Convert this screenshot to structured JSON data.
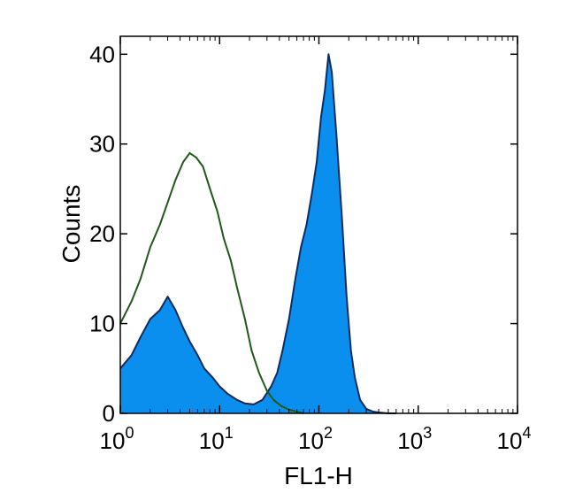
{
  "chart_data": {
    "type": "area",
    "title": "",
    "xlabel": "FL1-H",
    "ylabel": "Counts",
    "x_scale": "log",
    "xlim": [
      1,
      10000
    ],
    "ylim": [
      0,
      42
    ],
    "grid": false,
    "legend": "none",
    "x_ticks": [
      {
        "value": 1,
        "base": "10",
        "exp": "0"
      },
      {
        "value": 10,
        "base": "10",
        "exp": "1"
      },
      {
        "value": 100,
        "base": "10",
        "exp": "2"
      },
      {
        "value": 1000,
        "base": "10",
        "exp": "3"
      },
      {
        "value": 10000,
        "base": "10",
        "exp": "4"
      }
    ],
    "y_ticks": [
      {
        "value": 0,
        "label": "0"
      },
      {
        "value": 10,
        "label": "10"
      },
      {
        "value": 20,
        "label": "20"
      },
      {
        "value": 30,
        "label": "30"
      },
      {
        "value": 40,
        "label": "40"
      }
    ],
    "series": [
      {
        "style": "filled",
        "color": "#0a8fef",
        "edge_color": "#0b2d63",
        "x": [
          1.0,
          1.3,
          1.6,
          2.0,
          2.5,
          3.0,
          3.6,
          4.3,
          5.0,
          6.0,
          7.0,
          8.5,
          10,
          12,
          15,
          18,
          22,
          27,
          33,
          38,
          43,
          50,
          58,
          66,
          75,
          85,
          95,
          105,
          115,
          125,
          135,
          150,
          170,
          190,
          210,
          230,
          260,
          300,
          350,
          400,
          500,
          600
        ],
        "y": [
          5.0,
          6.5,
          8.5,
          10.5,
          11.5,
          13.0,
          11.5,
          9.5,
          8.0,
          6.5,
          5.0,
          4.0,
          3.0,
          2.2,
          1.5,
          1.1,
          1.0,
          1.5,
          3.0,
          4.5,
          7.0,
          10.5,
          15.0,
          18.5,
          21.0,
          24.5,
          28.0,
          33.0,
          36.0,
          40.0,
          38.0,
          31.0,
          22.0,
          13.0,
          7.0,
          4.0,
          1.5,
          0.5,
          0.2,
          0.1,
          0.0,
          0.0
        ]
      },
      {
        "style": "line",
        "color": "#1e5a16",
        "x": [
          1.0,
          1.3,
          1.6,
          2.0,
          2.5,
          3.0,
          3.6,
          4.3,
          5.0,
          5.8,
          6.8,
          8.0,
          9.5,
          11,
          13,
          15,
          18,
          21,
          25,
          30,
          35,
          42,
          50,
          60,
          70
        ],
        "y": [
          10.0,
          12.5,
          15.0,
          18.5,
          21.0,
          23.5,
          26.0,
          28.0,
          29.0,
          28.5,
          27.5,
          25.0,
          22.5,
          19.5,
          17.0,
          14.0,
          10.5,
          7.0,
          4.5,
          2.5,
          1.5,
          0.8,
          0.4,
          0.2,
          0.0
        ]
      }
    ]
  }
}
